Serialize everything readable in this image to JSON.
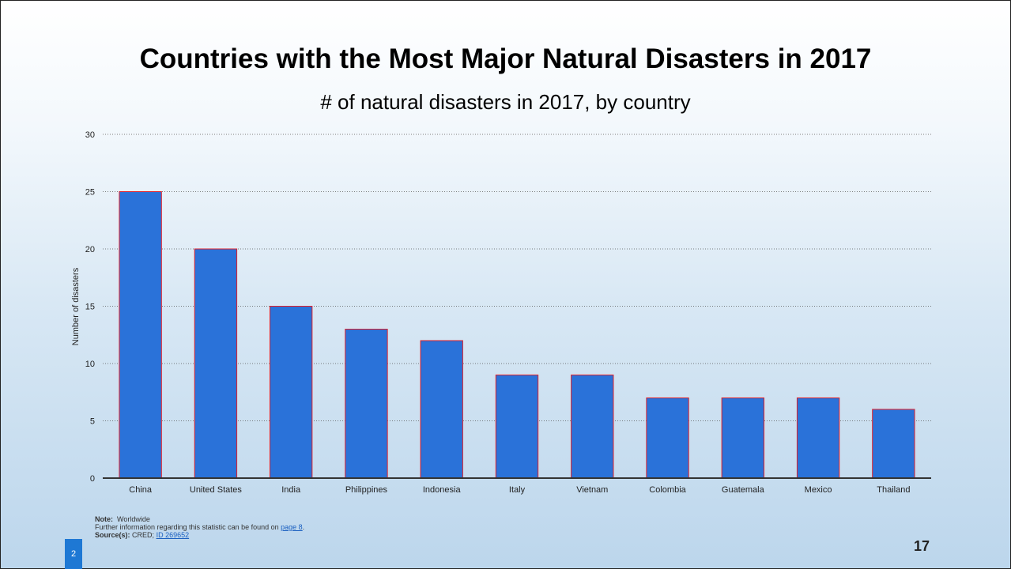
{
  "slide": {
    "title": "Countries with the Most Major Natural Disasters in 2017",
    "subtitle": "# of natural disasters in 2017, by country",
    "page_badge": "2",
    "slide_number": "17"
  },
  "note": {
    "note_label": "Note:",
    "note_text": "Worldwide",
    "info_text": "Further information regarding this statistic can be found on",
    "info_link": "page 8",
    "info_end": ".",
    "source_label": "Source(s):",
    "source_text": "CRED;",
    "source_link": "ID 269652"
  },
  "chart_data": {
    "type": "bar",
    "categories": [
      "China",
      "United States",
      "India",
      "Philippines",
      "Indonesia",
      "Italy",
      "Vietnam",
      "Colombia",
      "Guatemala",
      "Mexico",
      "Thailand"
    ],
    "values": [
      25,
      20,
      15,
      13,
      12,
      9,
      9,
      7,
      7,
      7,
      6
    ],
    "xlabel": "",
    "ylabel": "Number of disasters",
    "ylim": [
      0,
      30
    ],
    "yticks": [
      0,
      5,
      10,
      15,
      20,
      25,
      30
    ],
    "grid": true,
    "bar_color": "#2a72d9",
    "bar_edge_color": "#e0202a",
    "legend": false
  }
}
